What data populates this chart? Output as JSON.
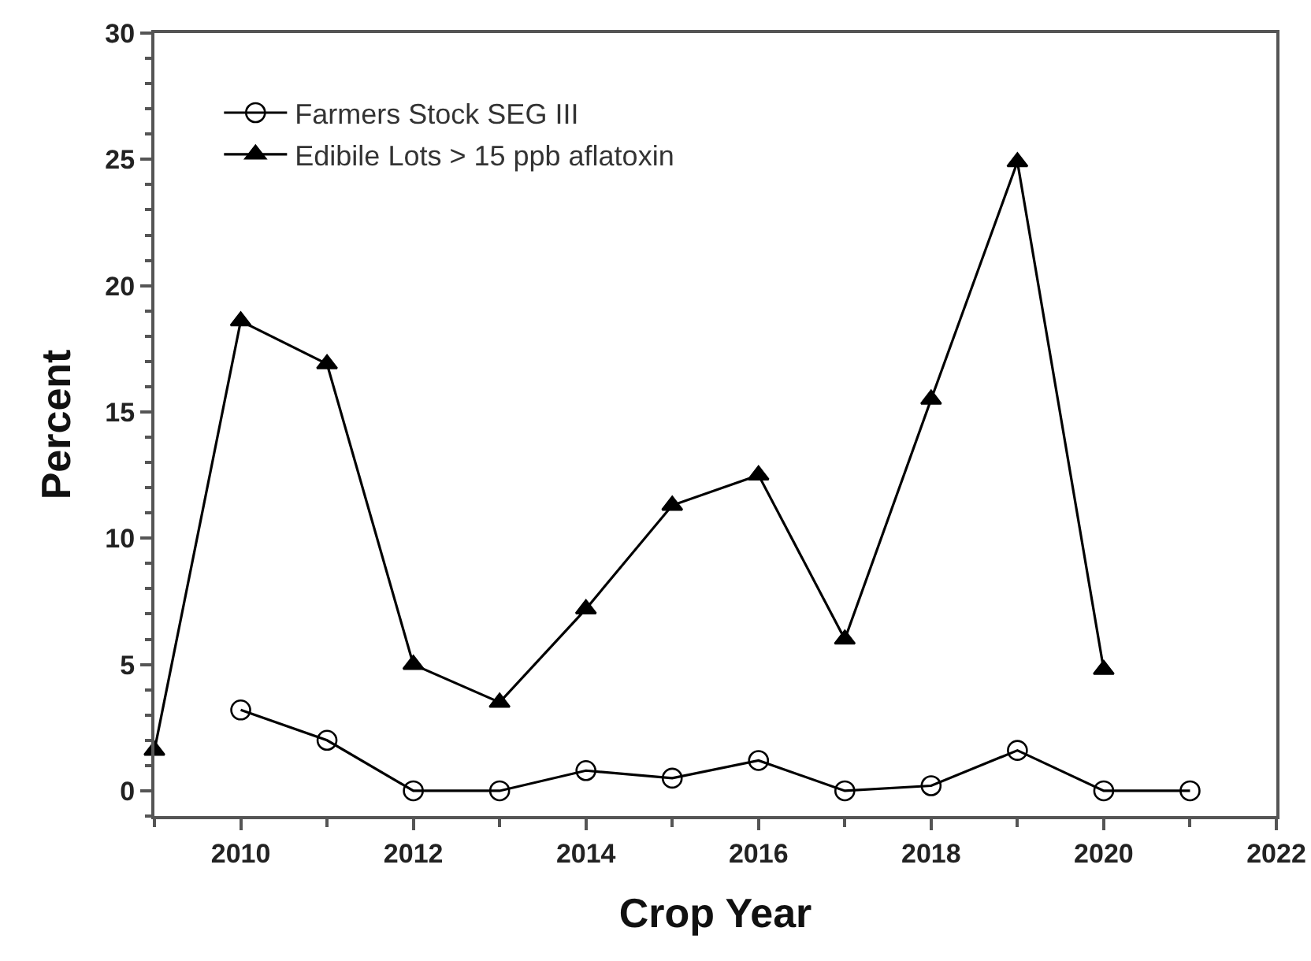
{
  "chart_data": {
    "type": "line",
    "xlabel": "Crop Year",
    "ylabel": "Percent",
    "x": [
      2009,
      2010,
      2011,
      2012,
      2013,
      2014,
      2015,
      2016,
      2017,
      2018,
      2019,
      2020,
      2021
    ],
    "series": [
      {
        "name": "Farmers Stock SEG III",
        "color": "#000000",
        "marker": "circle",
        "values": [
          null,
          3.2,
          2.0,
          0.0,
          0.0,
          0.8,
          0.5,
          1.2,
          0.0,
          0.2,
          1.6,
          0.0,
          0.0
        ]
      },
      {
        "name": "Edibile Lots > 15 ppb aflatoxin",
        "color": "#000000",
        "marker": "triangle",
        "values": [
          1.6,
          18.6,
          16.9,
          5.0,
          3.5,
          7.2,
          11.3,
          12.5,
          6.0,
          15.5,
          24.9,
          4.8,
          null
        ]
      }
    ],
    "xlim": [
      2009,
      2022
    ],
    "xticks": [
      {
        "value": 2009,
        "label": null
      },
      2010,
      {
        "value": 2011,
        "label": null
      },
      2012,
      {
        "value": 2013,
        "label": null
      },
      2014,
      {
        "value": 2015,
        "label": null
      },
      2016,
      {
        "value": 2017,
        "label": null
      },
      2018,
      {
        "value": 2019,
        "label": null
      },
      2020,
      {
        "value": 2021,
        "label": null
      },
      2022
    ],
    "ylim": [
      -1,
      30
    ],
    "yticks": [
      {
        "value": -1,
        "label": null
      },
      0,
      {
        "value": 1,
        "label": null
      },
      {
        "value": 2,
        "label": null
      },
      {
        "value": 3,
        "label": null
      },
      {
        "value": 4,
        "label": null
      },
      5,
      {
        "value": 6,
        "label": null
      },
      {
        "value": 7,
        "label": null
      },
      {
        "value": 8,
        "label": null
      },
      {
        "value": 9,
        "label": null
      },
      10,
      {
        "value": 11,
        "label": null
      },
      {
        "value": 12,
        "label": null
      },
      {
        "value": 13,
        "label": null
      },
      {
        "value": 14,
        "label": null
      },
      15,
      {
        "value": 16,
        "label": null
      },
      {
        "value": 17,
        "label": null
      },
      {
        "value": 18,
        "label": null
      },
      {
        "value": 19,
        "label": null
      },
      20,
      {
        "value": 21,
        "label": null
      },
      {
        "value": 22,
        "label": null
      },
      {
        "value": 23,
        "label": null
      },
      {
        "value": 24,
        "label": null
      },
      25,
      {
        "value": 26,
        "label": null
      },
      {
        "value": 27,
        "label": null
      },
      {
        "value": 28,
        "label": null
      },
      {
        "value": 29,
        "label": null
      },
      30
    ],
    "grid": false,
    "legend": "top left",
    "line_style": "solid"
  }
}
